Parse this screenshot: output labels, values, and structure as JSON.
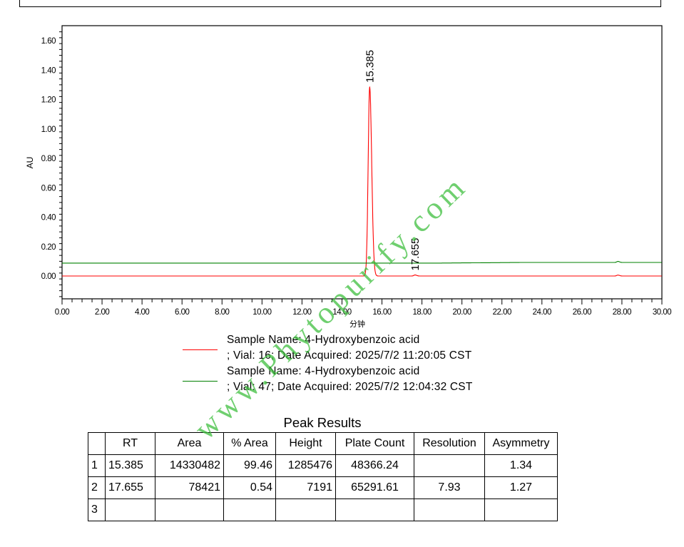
{
  "chart_data": {
    "type": "line",
    "xlabel": "分钟",
    "ylabel": "AU",
    "xlim": [
      0,
      30
    ],
    "ylim": [
      -0.15,
      1.7
    ],
    "x_ticks": [
      "0.00",
      "2.00",
      "4.00",
      "6.00",
      "8.00",
      "10.00",
      "12.00",
      "14.00",
      "16.00",
      "18.00",
      "20.00",
      "22.00",
      "24.00",
      "26.00",
      "28.00",
      "30.00"
    ],
    "y_ticks": [
      "0.00",
      "0.20",
      "0.40",
      "0.60",
      "0.80",
      "1.00",
      "1.20",
      "1.40",
      "1.60"
    ],
    "grid": false,
    "series": [
      {
        "color": "#ff0000",
        "baseline": 0.0,
        "peaks": [
          {
            "rt": 15.385,
            "height": 1.285,
            "label": "15.385"
          },
          {
            "rt": 17.655,
            "height": 0.007,
            "label": "17.655"
          },
          {
            "rt": 27.8,
            "height": 0.006
          }
        ]
      },
      {
        "color": "#008000",
        "baseline": 0.088,
        "peaks": [
          {
            "rt": 27.8,
            "height": 0.007
          }
        ]
      }
    ],
    "annotations": [
      "15.385",
      "17.655"
    ]
  },
  "legend": [
    {
      "color": "#ff0000",
      "line1": "Sample Name: 4-Hydroxybenzoic acid",
      "line2": "; Vial: 16; Date Acquired: 2025/7/2 11:20:05 CST"
    },
    {
      "color": "#008000",
      "line1": "Sample Name: 4-Hydroxybenzoic acid",
      "line2": "; Vial: 47; Date Acquired: 2025/7/2 12:04:32 CST"
    }
  ],
  "peak_results": {
    "title": "Peak Results",
    "headers": [
      "",
      "RT",
      "Area",
      "% Area",
      "Height",
      "Plate Count",
      "Resolution",
      "Asymmetry"
    ],
    "rows": [
      [
        "1",
        "15.385",
        "14330482",
        "99.46",
        "1285476",
        "48366.24",
        "",
        "1.34"
      ],
      [
        "2",
        "17.655",
        "78421",
        "0.54",
        "7191",
        "65291.61",
        "7.93",
        "1.27"
      ],
      [
        "3",
        "",
        "",
        "",
        "",
        "",
        "",
        ""
      ]
    ]
  },
  "watermark": "www.Phytopurify.com"
}
